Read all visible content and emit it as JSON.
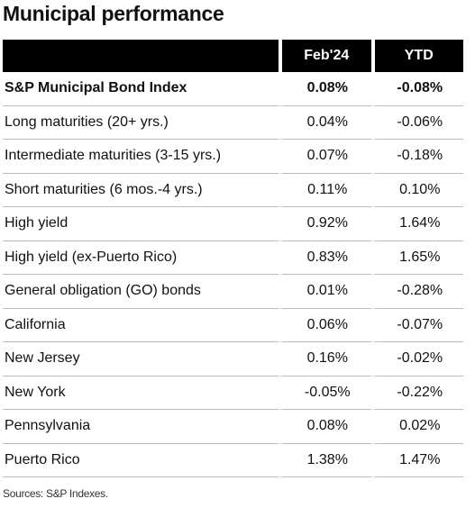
{
  "title": "Municipal performance",
  "table": {
    "header": [
      "Feb'24",
      "YTD"
    ],
    "rows": [
      [
        "S&P Municipal Bond Index",
        "0.08%",
        "-0.08%"
      ],
      [
        "Long maturities (20+ yrs.)",
        "0.04%",
        "-0.06%"
      ],
      [
        "Intermediate maturities (3-15 yrs.)",
        "0.07%",
        "-0.18%"
      ],
      [
        "Short maturities (6 mos.-4 yrs.)",
        "0.11%",
        "0.10%"
      ],
      [
        "High yield",
        "0.92%",
        "1.64%"
      ],
      [
        "High yield (ex-Puerto Rico)",
        "0.83%",
        "1.65%"
      ],
      [
        "General obligation (GO) bonds",
        "0.01%",
        "-0.28%"
      ],
      [
        "California",
        "0.06%",
        "-0.07%"
      ],
      [
        "New Jersey",
        "0.16%",
        "-0.02%"
      ],
      [
        "New York",
        "-0.05%",
        "-0.22%"
      ],
      [
        "Pennsylvania",
        "0.08%",
        "0.02%"
      ],
      [
        "Puerto Rico",
        "1.38%",
        "1.47%"
      ]
    ]
  },
  "source": "Sources: S&P Indexes."
}
